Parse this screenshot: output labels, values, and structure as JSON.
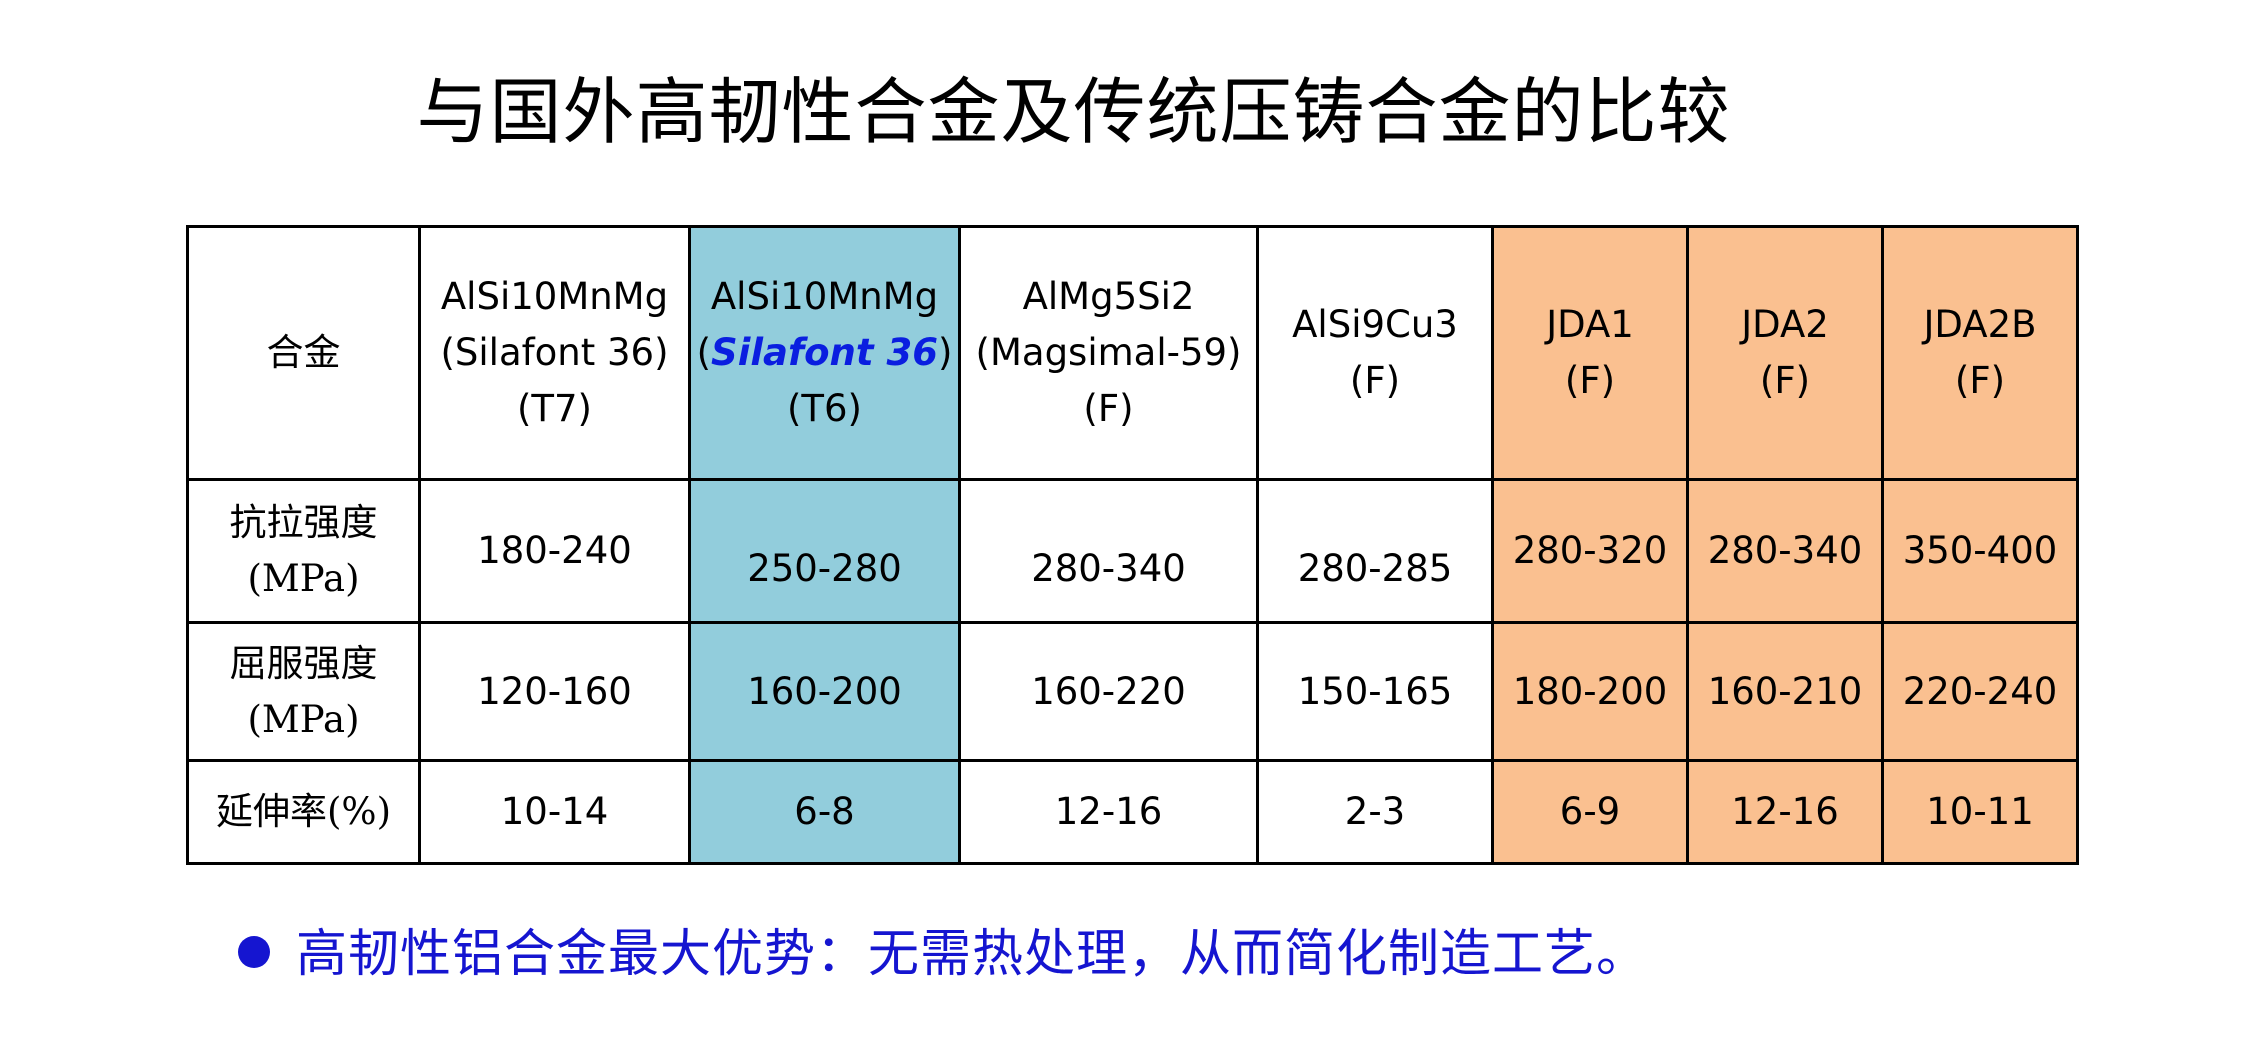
{
  "title": "与国外高韧性合金及传统压铸合金的比较",
  "table": {
    "corner": "合金",
    "columns": [
      {
        "lines": [
          "AlSi10MnMg",
          "(Silafont 36)",
          "(T7)"
        ],
        "fill": "none"
      },
      {
        "line1": "AlSi10MnMg",
        "line2_pre": "(",
        "line2_name": "Silafont 36",
        "line2_post": ")",
        "line3": "(T6)",
        "fill": "#92cddc"
      },
      {
        "lines": [
          "AlMg5Si2",
          "(Magsimal-59)",
          "(F)"
        ],
        "fill": "none"
      },
      {
        "lines": [
          "AlSi9Cu3",
          "(F)"
        ],
        "fill": "none"
      },
      {
        "lines": [
          "JDA1",
          "(F)"
        ],
        "fill": "#fac090"
      },
      {
        "lines": [
          "JDA2",
          "(F)"
        ],
        "fill": "#fac090"
      },
      {
        "lines": [
          "JDA2B",
          "(F)"
        ],
        "fill": "#fac090"
      }
    ],
    "rows": [
      {
        "label": [
          "抗拉强度",
          "(MPa)"
        ],
        "values": [
          "180-240",
          "250-280",
          "280-340",
          "280-285",
          "280-320",
          "280-340",
          "350-400"
        ]
      },
      {
        "label": [
          "屈服强度",
          "(MPa)"
        ],
        "values": [
          "120-160",
          "160-200",
          "160-220",
          "150-165",
          "180-200",
          "160-210",
          "220-240"
        ]
      },
      {
        "label": [
          "延伸率(%)"
        ],
        "values": [
          "10-14",
          "6-8",
          "12-16",
          "2-3",
          "6-9",
          "12-16",
          "10-11"
        ]
      }
    ]
  },
  "bullet": {
    "text": "高韧性铝合金最大优势：无需热处理，从而简化制造工艺。",
    "color": "#1515d0"
  }
}
